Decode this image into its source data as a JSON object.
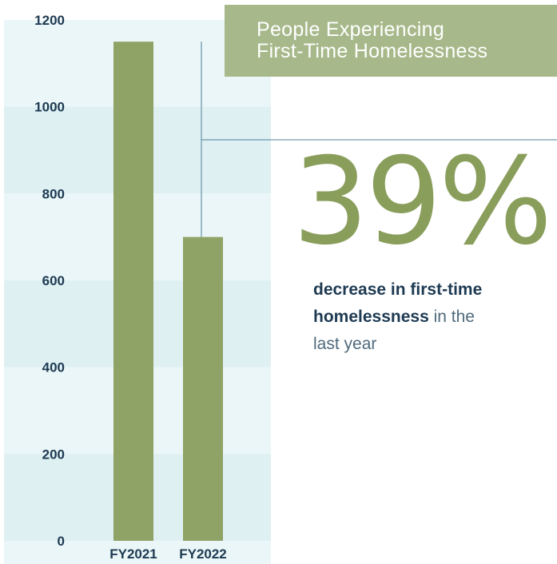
{
  "chart_data": {
    "type": "bar",
    "categories": [
      "FY2021",
      "FY2022"
    ],
    "values": [
      1150,
      700
    ],
    "ylim": [
      0,
      1200
    ],
    "yticks": [
      0,
      200,
      400,
      600,
      800,
      1000,
      1200
    ],
    "grid": "alternating bands",
    "colors": {
      "bar": "#8fa366",
      "band_light": "#eaf6f7",
      "band_dark": "#dff0f3",
      "annotation_line": "#4f7f99"
    }
  },
  "title": {
    "line1": "People Experiencing",
    "line2": "First-Time Homelessness"
  },
  "stat": {
    "value": "39%",
    "desc_bold1": "decrease in first-time",
    "desc_bold2": "homelessness",
    "desc_rest1": " in the",
    "desc_rest2": "last year"
  },
  "colors": {
    "title_bg": "#a7b98b",
    "stat": "#8a9e5c",
    "text_dark": "#1d3a52"
  }
}
